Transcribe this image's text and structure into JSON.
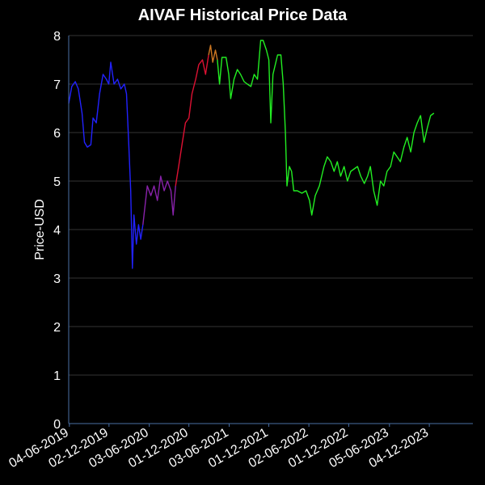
{
  "chart_data": {
    "type": "line",
    "title": "AIVAF Historical Price Data",
    "xlabel": "",
    "ylabel": "Price-USD",
    "ylim": [
      0,
      8
    ],
    "yticks": [
      0,
      1,
      2,
      3,
      4,
      5,
      6,
      7,
      8
    ],
    "xlim": [
      "2019-06-01",
      "2024-06-20"
    ],
    "xtick_labels": [
      "04-06-2019",
      "02-12-2019",
      "03-06-2020",
      "01-12-2020",
      "03-06-2021",
      "01-12-2021",
      "02-06-2022",
      "01-12-2022",
      "05-06-2023",
      "04-12-2023"
    ],
    "xtick_dates": [
      "2019-06-04",
      "2019-12-02",
      "2020-06-03",
      "2020-12-01",
      "2021-06-03",
      "2021-12-01",
      "2022-06-02",
      "2022-12-01",
      "2023-06-05",
      "2023-12-04"
    ],
    "grid": true,
    "colors": {
      "background": "#000000",
      "grid": "#333333",
      "axis": "#4a6fa5",
      "text": "#ffffff"
    },
    "series": [
      {
        "color": "#2222ff",
        "points": [
          [
            "2019-06-01",
            6.6
          ],
          [
            "2019-06-15",
            6.95
          ],
          [
            "2019-07-01",
            7.05
          ],
          [
            "2019-07-15",
            6.9
          ],
          [
            "2019-08-01",
            6.4
          ],
          [
            "2019-08-12",
            5.8
          ],
          [
            "2019-08-25",
            5.7
          ],
          [
            "2019-09-10",
            5.75
          ],
          [
            "2019-09-20",
            6.3
          ],
          [
            "2019-10-05",
            6.2
          ],
          [
            "2019-10-20",
            6.8
          ],
          [
            "2019-11-05",
            7.2
          ],
          [
            "2019-11-20",
            7.1
          ],
          [
            "2019-12-01",
            7.0
          ],
          [
            "2019-12-10",
            7.45
          ],
          [
            "2019-12-25",
            7.0
          ],
          [
            "2020-01-10",
            7.1
          ],
          [
            "2020-01-25",
            6.9
          ],
          [
            "2020-02-10",
            7.0
          ],
          [
            "2020-02-20",
            6.8
          ],
          [
            "2020-03-01",
            5.8
          ],
          [
            "2020-03-10",
            4.8
          ],
          [
            "2020-03-18",
            3.2
          ],
          [
            "2020-03-25",
            4.3
          ],
          [
            "2020-04-05",
            3.7
          ],
          [
            "2020-04-15",
            4.1
          ],
          [
            "2020-04-25",
            3.8
          ],
          [
            "2020-05-05",
            4.1
          ]
        ]
      },
      {
        "color": "#8822aa",
        "points": [
          [
            "2020-05-05",
            4.1
          ],
          [
            "2020-05-15",
            4.5
          ],
          [
            "2020-05-25",
            4.9
          ],
          [
            "2020-06-10",
            4.7
          ],
          [
            "2020-06-25",
            4.9
          ],
          [
            "2020-07-10",
            4.6
          ],
          [
            "2020-07-25",
            5.1
          ],
          [
            "2020-08-10",
            4.8
          ],
          [
            "2020-08-25",
            5.0
          ],
          [
            "2020-09-10",
            4.8
          ],
          [
            "2020-09-20",
            4.3
          ],
          [
            "2020-10-01",
            4.9
          ]
        ]
      },
      {
        "color": "#dd1133",
        "points": [
          [
            "2020-10-01",
            4.9
          ],
          [
            "2020-10-15",
            5.3
          ],
          [
            "2020-11-01",
            5.8
          ],
          [
            "2020-11-15",
            6.2
          ],
          [
            "2020-12-01",
            6.3
          ],
          [
            "2020-12-15",
            6.8
          ],
          [
            "2021-01-01",
            7.1
          ],
          [
            "2021-01-15",
            7.4
          ],
          [
            "2021-02-01",
            7.5
          ],
          [
            "2021-02-15",
            7.2
          ],
          [
            "2021-03-01",
            7.6
          ]
        ]
      },
      {
        "color": "#cc7722",
        "points": [
          [
            "2021-03-01",
            7.6
          ],
          [
            "2021-03-10",
            7.8
          ],
          [
            "2021-03-20",
            7.45
          ],
          [
            "2021-04-01",
            7.7
          ],
          [
            "2021-04-10",
            7.5
          ]
        ]
      },
      {
        "color": "#22ee22",
        "points": [
          [
            "2021-04-10",
            7.5
          ],
          [
            "2021-04-20",
            7.0
          ],
          [
            "2021-05-01",
            7.55
          ],
          [
            "2021-05-20",
            7.55
          ],
          [
            "2021-06-01",
            7.2
          ],
          [
            "2021-06-10",
            6.7
          ],
          [
            "2021-06-25",
            7.1
          ],
          [
            "2021-07-10",
            7.3
          ],
          [
            "2021-07-25",
            7.2
          ],
          [
            "2021-08-10",
            7.05
          ],
          [
            "2021-08-25",
            7.0
          ],
          [
            "2021-09-10",
            6.95
          ],
          [
            "2021-09-25",
            7.2
          ],
          [
            "2021-10-10",
            7.1
          ],
          [
            "2021-10-25",
            7.9
          ],
          [
            "2021-11-05",
            7.9
          ],
          [
            "2021-11-20",
            7.7
          ],
          [
            "2021-12-01",
            7.5
          ],
          [
            "2021-12-10",
            6.2
          ],
          [
            "2021-12-20",
            7.2
          ],
          [
            "2022-01-10",
            7.6
          ],
          [
            "2022-01-25",
            7.6
          ],
          [
            "2022-02-05",
            7.0
          ],
          [
            "2022-02-15",
            6.0
          ],
          [
            "2022-02-22",
            4.9
          ],
          [
            "2022-03-05",
            5.3
          ],
          [
            "2022-03-15",
            5.2
          ],
          [
            "2022-03-25",
            4.8
          ],
          [
            "2022-04-10",
            4.8
          ],
          [
            "2022-05-01",
            4.75
          ],
          [
            "2022-05-20",
            4.8
          ],
          [
            "2022-06-05",
            4.6
          ],
          [
            "2022-06-15",
            4.3
          ],
          [
            "2022-07-01",
            4.7
          ],
          [
            "2022-07-20",
            4.9
          ],
          [
            "2022-08-10",
            5.3
          ],
          [
            "2022-08-25",
            5.5
          ],
          [
            "2022-09-10",
            5.4
          ],
          [
            "2022-09-25",
            5.2
          ],
          [
            "2022-10-10",
            5.4
          ],
          [
            "2022-10-25",
            5.1
          ],
          [
            "2022-11-10",
            5.3
          ],
          [
            "2022-11-25",
            5.0
          ],
          [
            "2022-12-10",
            5.2
          ],
          [
            "2023-01-10",
            5.3
          ],
          [
            "2023-01-25",
            5.1
          ],
          [
            "2023-02-10",
            4.95
          ],
          [
            "2023-02-25",
            5.1
          ],
          [
            "2023-03-10",
            5.3
          ],
          [
            "2023-03-25",
            4.8
          ],
          [
            "2023-04-10",
            4.5
          ],
          [
            "2023-04-25",
            5.0
          ],
          [
            "2023-05-10",
            4.9
          ],
          [
            "2023-05-25",
            5.2
          ],
          [
            "2023-06-10",
            5.3
          ],
          [
            "2023-06-25",
            5.6
          ],
          [
            "2023-07-10",
            5.5
          ],
          [
            "2023-07-25",
            5.4
          ],
          [
            "2023-08-10",
            5.7
          ],
          [
            "2023-08-25",
            5.9
          ],
          [
            "2023-09-10",
            5.6
          ],
          [
            "2023-09-25",
            6.0
          ],
          [
            "2023-10-10",
            6.2
          ],
          [
            "2023-10-25",
            6.35
          ],
          [
            "2023-11-10",
            5.8
          ],
          [
            "2023-11-25",
            6.1
          ],
          [
            "2023-12-10",
            6.35
          ],
          [
            "2023-12-25",
            6.4
          ]
        ]
      }
    ]
  }
}
